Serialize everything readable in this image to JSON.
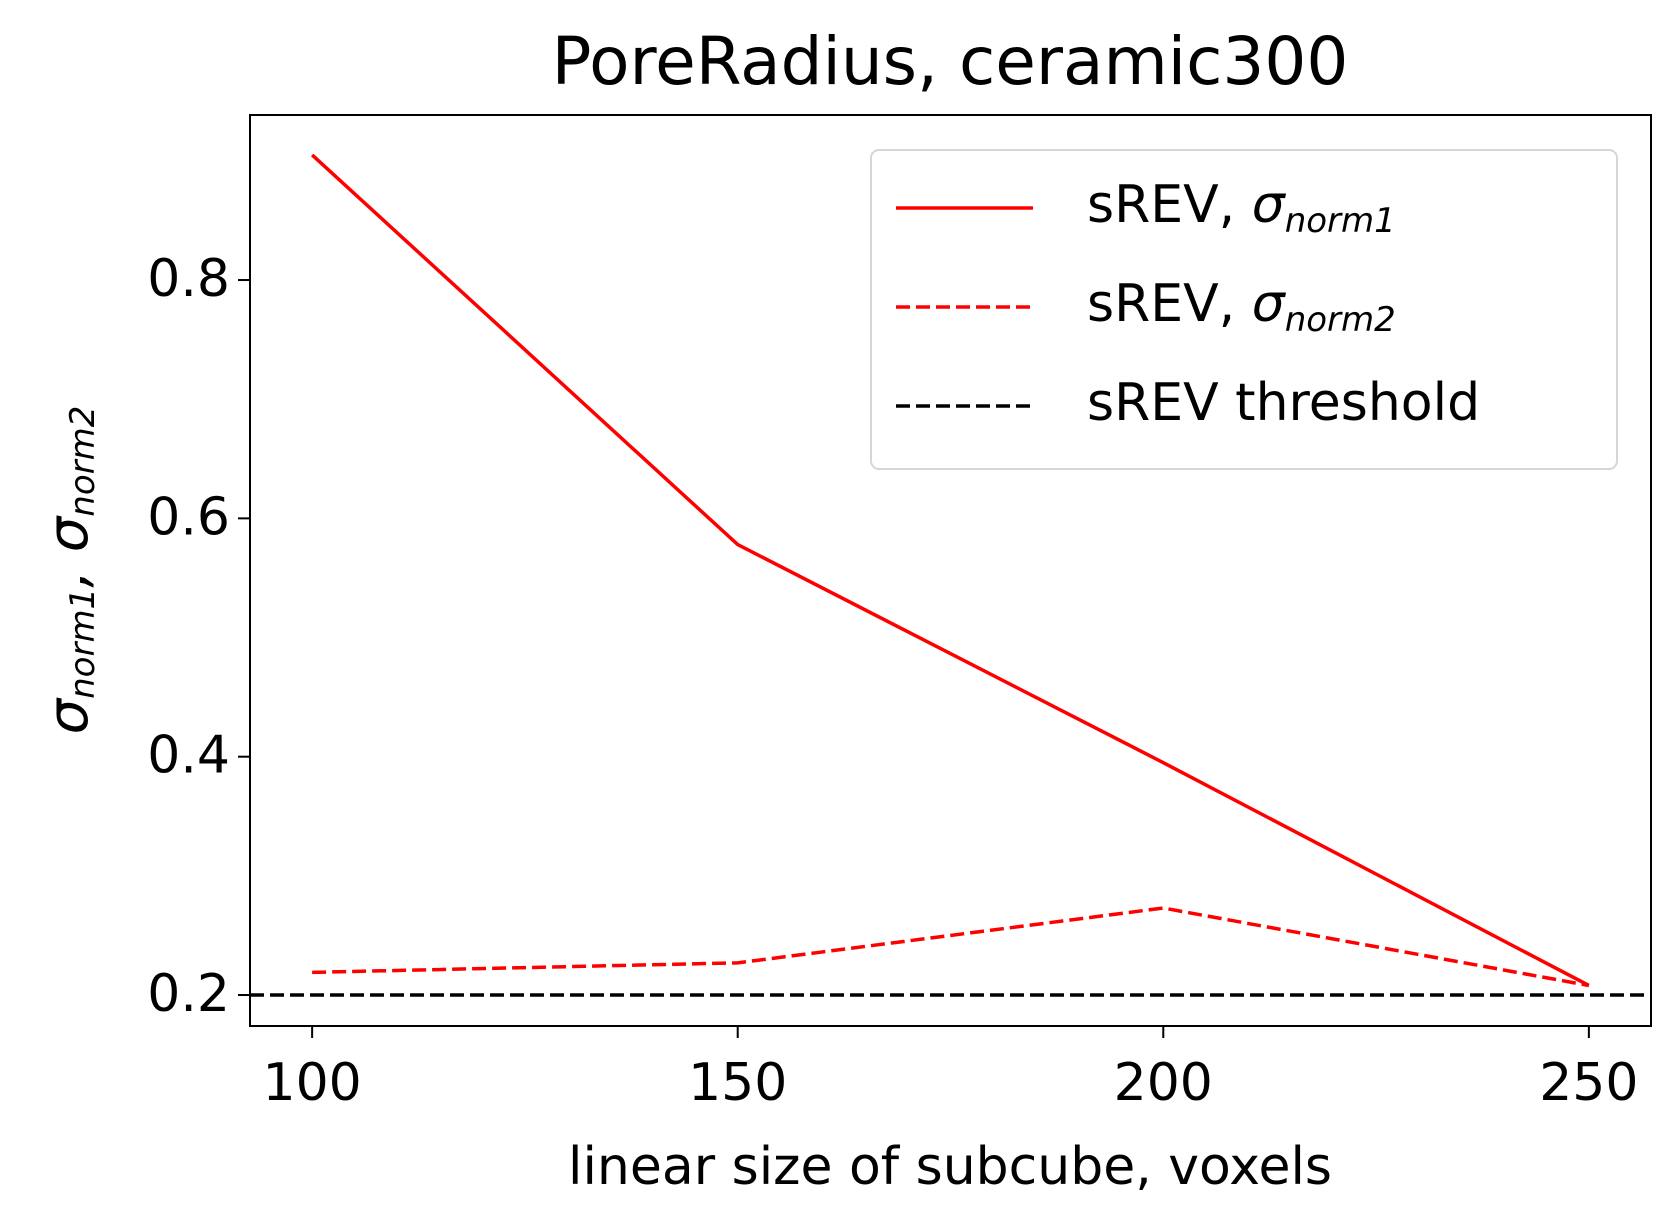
{
  "chart_data": {
    "type": "line",
    "title": "PoreRadius, ceramic300",
    "xlabel": "linear size of subcube, voxels",
    "ylabel": [
      {
        "text": "σ",
        "sub": "norm1"
      },
      {
        "text": ", σ",
        "sub": "norm2"
      }
    ],
    "x": [
      100,
      150,
      200,
      250
    ],
    "series": [
      {
        "name": {
          "text": "sREV, ",
          "math": "σ",
          "sub": "norm1"
        },
        "color": "#ff0000",
        "dash": false,
        "values": [
          0.905,
          0.578,
          0.395,
          0.208
        ]
      },
      {
        "name": {
          "text": "sREV, ",
          "math": "σ",
          "sub": "norm2"
        },
        "color": "#ff0000",
        "dash": true,
        "values": [
          0.219,
          0.227,
          0.273,
          0.208
        ]
      }
    ],
    "threshold": {
      "name": "sREV threshold",
      "value": 0.2,
      "color": "#000000"
    },
    "xlim": [
      92.7,
      257.3
    ],
    "xticks": [
      100,
      150,
      200,
      250
    ],
    "ylim": [
      0.174,
      0.9385
    ],
    "yticks": [
      0.2,
      0.4,
      0.6,
      0.8
    ],
    "legend": "upper right",
    "grid": false
  }
}
